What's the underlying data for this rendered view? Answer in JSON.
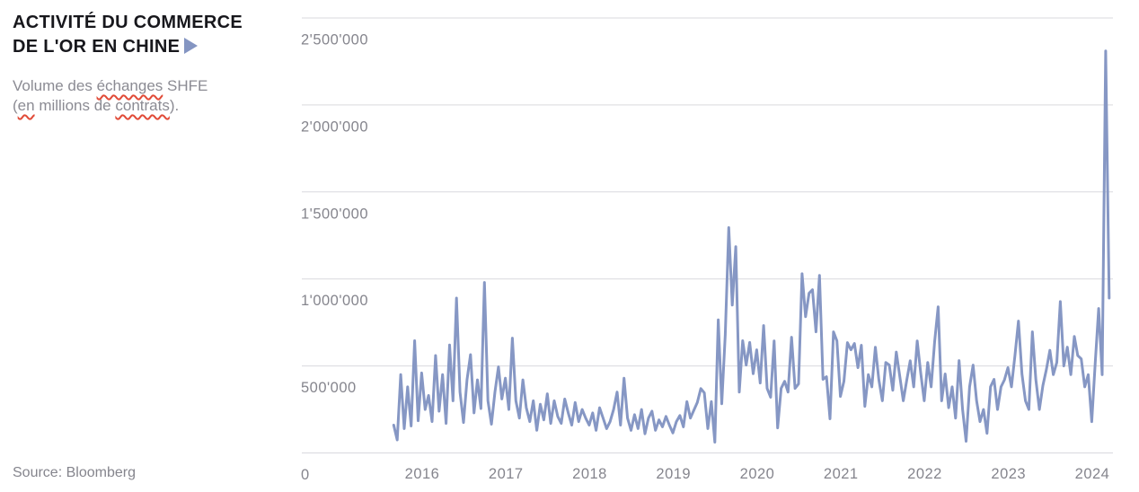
{
  "header": {
    "title_line1": "ACTIVITÉ DU COMMERCE",
    "title_line2": "DE L'OR EN CHINE",
    "arrow_color": "#8495c2"
  },
  "subtitle": {
    "line1_parts": [
      {
        "text": "Volume des ",
        "misspelled": false
      },
      {
        "text": "échanges",
        "misspelled": true
      },
      {
        "text": " SHFE",
        "misspelled": false
      }
    ],
    "line2_parts": [
      {
        "text": "(",
        "misspelled": false
      },
      {
        "text": "en",
        "misspelled": true
      },
      {
        "text": " millions de ",
        "misspelled": false
      },
      {
        "text": "contrats",
        "misspelled": true
      },
      {
        "text": ").",
        "misspelled": false
      }
    ]
  },
  "footer": {
    "source_label": "Source: Bloomberg"
  },
  "chart_data": {
    "type": "line",
    "title": "ACTIVITÉ DU COMMERCE DE L'OR EN CHINE",
    "subtitle": "Volume des échanges SHFE (en millions de contrats).",
    "xlabel": "",
    "ylabel": "",
    "grid": "horizontal",
    "legend": "none",
    "y_axis_range": [
      0,
      2500000
    ],
    "x_axis_range": [
      2014.56,
      2024.25
    ],
    "y_ticks": [
      {
        "value": 2500000,
        "label": "2'500'000"
      },
      {
        "value": 2000000,
        "label": "2'000'000"
      },
      {
        "value": 1500000,
        "label": "1'500'000"
      },
      {
        "value": 1000000,
        "label": "1'000'000"
      },
      {
        "value": 500000,
        "label": "500'000"
      },
      {
        "value": 0,
        "label": "0"
      }
    ],
    "x_ticks": [
      {
        "t": 2016,
        "label": "2016"
      },
      {
        "t": 2017,
        "label": "2017"
      },
      {
        "t": 2018,
        "label": "2018"
      },
      {
        "t": 2019,
        "label": "2019"
      },
      {
        "t": 2020,
        "label": "2020"
      },
      {
        "t": 2021,
        "label": "2021"
      },
      {
        "t": 2022,
        "label": "2022"
      },
      {
        "t": 2023,
        "label": "2023"
      },
      {
        "t": 2024,
        "label": "2024"
      }
    ],
    "x_start_year": 2015.66,
    "x_step_years": 0.0416667,
    "series": [
      {
        "name": "Volume des échanges SHFE",
        "color": "#8697c4",
        "values": [
          160000,
          75000,
          450000,
          140000,
          380000,
          155000,
          645000,
          185000,
          460000,
          250000,
          330000,
          180000,
          560000,
          240000,
          450000,
          170000,
          620000,
          300000,
          890000,
          350000,
          175000,
          420000,
          565000,
          230000,
          420000,
          255000,
          980000,
          300000,
          165000,
          350000,
          495000,
          310000,
          430000,
          250000,
          660000,
          300000,
          200000,
          420000,
          260000,
          180000,
          300000,
          130000,
          280000,
          190000,
          340000,
          170000,
          300000,
          210000,
          170000,
          310000,
          230000,
          160000,
          290000,
          180000,
          250000,
          200000,
          160000,
          230000,
          130000,
          260000,
          200000,
          140000,
          180000,
          250000,
          350000,
          160000,
          430000,
          200000,
          130000,
          220000,
          140000,
          250000,
          110000,
          200000,
          240000,
          130000,
          190000,
          150000,
          210000,
          160000,
          115000,
          180000,
          215000,
          150000,
          295000,
          200000,
          245000,
          290000,
          370000,
          345000,
          140000,
          295000,
          62000,
          765000,
          283000,
          680000,
          1295000,
          850000,
          1185000,
          350000,
          645000,
          505000,
          635000,
          455000,
          593000,
          402000,
          732000,
          371000,
          320000,
          644000,
          144000,
          371000,
          412000,
          350000,
          665000,
          371000,
          397000,
          1030000,
          783000,
          918000,
          938000,
          696000,
          1020000,
          423000,
          438000,
          196000,
          696000,
          644000,
          325000,
          412000,
          634000,
          593000,
          629000,
          490000,
          619000,
          268000,
          450000,
          380000,
          608000,
          420000,
          300000,
          520000,
          505000,
          360000,
          580000,
          440000,
          300000,
          420000,
          530000,
          380000,
          644000,
          460000,
          300000,
          520000,
          380000,
          640000,
          840000,
          300000,
          454000,
          260000,
          380000,
          200000,
          531000,
          250000,
          67000,
          380000,
          505000,
          300000,
          180000,
          250000,
          113000,
          380000,
          423000,
          250000,
          380000,
          420000,
          490000,
          380000,
          560000,
          758000,
          454000,
          300000,
          250000,
          696000,
          420000,
          250000,
          387000,
          480000,
          590000,
          450000,
          520000,
          870000,
          500000,
          608000,
          450000,
          670000,
          560000,
          541000,
          380000,
          450000,
          180000,
          520000,
          830000,
          450000,
          2310000,
          890000
        ]
      }
    ]
  }
}
